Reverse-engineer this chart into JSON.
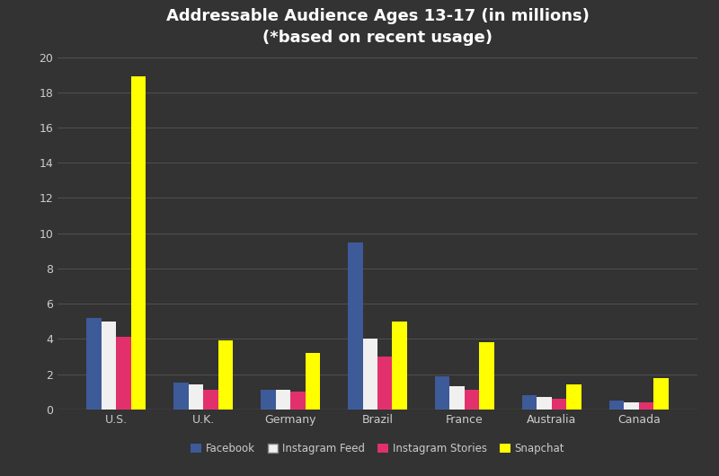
{
  "title": "Addressable Audience Ages 13-17 (in millions)\n(*based on recent usage)",
  "categories": [
    "U.S.",
    "U.K.",
    "Germany",
    "Brazil",
    "France",
    "Australia",
    "Canada"
  ],
  "series": {
    "Facebook": [
      5.2,
      1.5,
      1.1,
      9.5,
      1.9,
      0.8,
      0.5
    ],
    "Instagram Feed": [
      5.0,
      1.4,
      1.1,
      4.0,
      1.3,
      0.7,
      0.4
    ],
    "Instagram Stories": [
      4.1,
      1.1,
      1.0,
      3.0,
      1.1,
      0.6,
      0.4
    ],
    "Snapchat": [
      18.9,
      3.9,
      3.2,
      5.0,
      3.8,
      1.4,
      1.8
    ]
  },
  "colors": {
    "Facebook": "#3d5a99",
    "Instagram Feed": "#f0f0f0",
    "Instagram Stories": "#e1306c",
    "Snapchat": "#ffff00"
  },
  "background_color": "#333333",
  "text_color": "#cccccc",
  "grid_color": "#555555",
  "ylim": [
    0,
    20
  ],
  "yticks": [
    0,
    2,
    4,
    6,
    8,
    10,
    12,
    14,
    16,
    18,
    20
  ],
  "bar_width": 0.17,
  "title_fontsize": 13,
  "tick_fontsize": 9,
  "legend_fontsize": 8.5
}
